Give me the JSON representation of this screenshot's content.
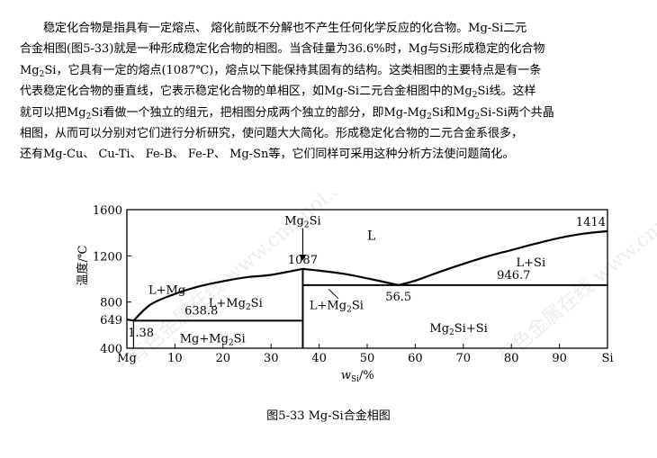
{
  "paragraph": {
    "lines": [
      [
        "稳定化合物是指具有一定熔点、 熔化前既不分解也不产生任何化学反应的化合物。Mg-Si二元"
      ],
      [
        "合金相图(图5-33)就是一种形成稳定化合物的相图。当含硅量为36.6%时，Mg与Si形成稳定的化合物"
      ],
      [
        "Mg",
        "2",
        "Si，它具有一定的熔点(1087℃)，熔点以下能保持其固有的结构。这类相图的主要特点是有一条"
      ],
      [
        "代表稳定化合物的垂直线，它表示稳定化合物的单相区，如Mg-Si二元合金相图中的Mg",
        "2",
        "Si线。这样"
      ],
      [
        "就可以把Mg",
        "2",
        "Si看做一个独立的组元，把相图分成两个独立的部分，即Mg-Mg",
        "2",
        "Si和Mg",
        "2",
        "Si-Si两个共晶"
      ],
      [
        "相图，从而可以分别对它们进行分析研究，使问题大大简化。形成稳定化合物的二元合金系很多，"
      ],
      [
        "还有Mg-Cu、 Cu-Ti、 Fe-B、 Fe-P、 Mg-Sn等，它们同样可采用这种分析方法使问题简化。"
      ]
    ]
  },
  "figure": {
    "caption": "图5-33 Mg-Si合金相图",
    "y_axis_label": "温度/℃",
    "x_axis_label_main": "w",
    "x_axis_label_sub": "Si",
    "x_axis_label_unit": "/%",
    "y_ticks": [
      "400",
      "800",
      "1200",
      "1600"
    ],
    "y_tick_values": [
      400,
      800,
      1200,
      1600
    ],
    "x_ticks": [
      "Mg",
      "10",
      "20",
      "30",
      "40",
      "50",
      "60",
      "70",
      "80",
      "90",
      "Si"
    ],
    "x_tick_values": [
      0,
      10,
      20,
      30,
      40,
      50,
      60,
      70,
      80,
      90,
      100
    ],
    "y_range": [
      400,
      1600
    ],
    "x_range": [
      0,
      100
    ],
    "special_temps": [
      {
        "text": "649",
        "temp": 649,
        "side": "left"
      },
      {
        "text": "1414",
        "temp": 1414,
        "side": "right"
      }
    ],
    "compound": {
      "label_main": "Mg",
      "label_sub": "2",
      "label_rest": "Si",
      "w": 36.6,
      "melting_text": "1087",
      "melting_temp": 1087
    },
    "eutectics": [
      {
        "text": "638.8",
        "temp": 638.8,
        "w_left": 1.38,
        "w_right": 36.6,
        "w_text": "1.38"
      },
      {
        "text": "946.7",
        "temp": 946.7,
        "w_left": 36.6,
        "w_right": 100,
        "w_text": "56.5",
        "w_eutectic": 56.5
      }
    ],
    "liquidus": [
      [
        [
          0,
          649
        ],
        [
          1.38,
          638.8
        ]
      ],
      [
        [
          1.38,
          638.8
        ],
        [
          5,
          780
        ],
        [
          10,
          870
        ],
        [
          15,
          935
        ],
        [
          20,
          980
        ],
        [
          25,
          1015
        ],
        [
          30,
          1035
        ],
        [
          36.6,
          1087
        ]
      ],
      [
        [
          36.6,
          1087
        ],
        [
          40,
          1072
        ],
        [
          45,
          1045
        ],
        [
          50,
          1005
        ],
        [
          56.5,
          946.7
        ]
      ],
      [
        [
          56.5,
          946.7
        ],
        [
          60,
          985
        ],
        [
          65,
          1060
        ],
        [
          70,
          1130
        ],
        [
          75,
          1195
        ],
        [
          80,
          1250
        ],
        [
          85,
          1305
        ],
        [
          90,
          1355
        ],
        [
          95,
          1392
        ],
        [
          100,
          1414
        ]
      ]
    ],
    "regions": [
      {
        "label": "L",
        "w": 50,
        "temp": 1340
      },
      {
        "label": "L+Mg",
        "w": 4.5,
        "temp": 870
      },
      {
        "label": "L+Mg",
        "sub": "2",
        "rest": "Si",
        "w": 17,
        "temp": 760
      },
      {
        "label": "L+Mg",
        "sub": "2",
        "rest": "Si",
        "w": 38,
        "temp": 740
      },
      {
        "label": "L+Si",
        "w": 81,
        "temp": 1110
      },
      {
        "label": "Mg+Mg",
        "sub": "2",
        "rest": "Si",
        "w": 11,
        "temp": 450
      },
      {
        "label": "Mg",
        "sub": "2",
        "rest": "Si+Si",
        "w": 63,
        "temp": 540
      }
    ],
    "watermark_text": "有色金属在线 www.cnmnol.com"
  }
}
